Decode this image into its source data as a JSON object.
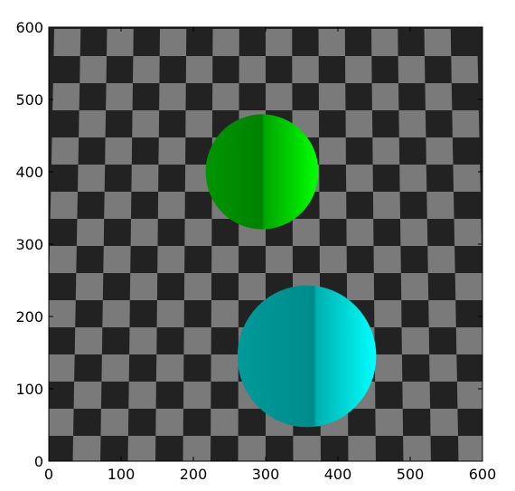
{
  "chart_data": {
    "type": "image",
    "x_ticks": [
      "0",
      "100",
      "200",
      "300",
      "400",
      "500",
      "600"
    ],
    "y_ticks": [
      "0",
      "100",
      "200",
      "300",
      "400",
      "500",
      "600"
    ],
    "xlim": [
      0,
      600
    ],
    "ylim": [
      0,
      600
    ],
    "scene": {
      "floor": {
        "pattern": "checkerboard",
        "dark_color": "#222222",
        "light_color": "#7a7a7a"
      },
      "spheres": [
        {
          "name": "green-sphere",
          "center": [
            295,
            400
          ],
          "radius": 78,
          "color": "#00ff00"
        },
        {
          "name": "cyan-sphere",
          "center": [
            357,
            145
          ],
          "radius": 96,
          "color": "#00ffff"
        }
      ]
    }
  }
}
